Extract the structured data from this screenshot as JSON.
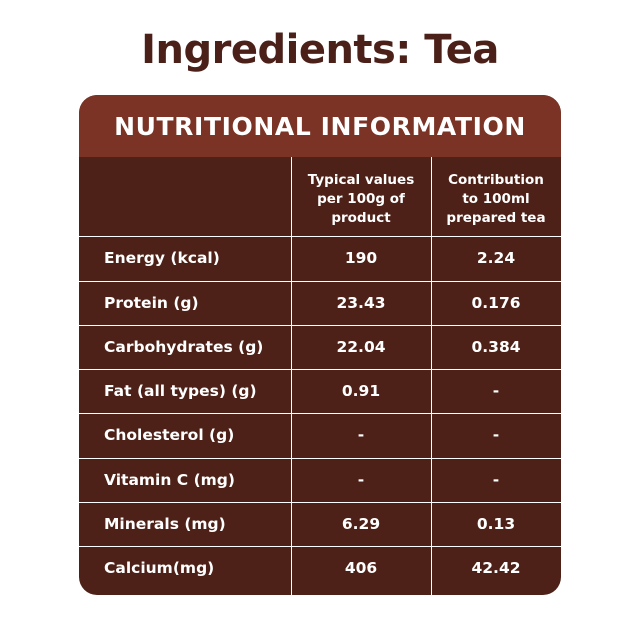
{
  "title": "Ingredients: Tea",
  "table": {
    "heading": "NUTRITIONAL INFORMATION",
    "columns": [
      "",
      "Typical values\nper 100g of\nproduct",
      "Contribution\nto 100ml\nprepared tea"
    ],
    "rows": [
      {
        "label": "Energy (kcal)",
        "per_100g": "190",
        "per_100ml": "2.24"
      },
      {
        "label": "Protein (g)",
        "per_100g": "23.43",
        "per_100ml": "0.176"
      },
      {
        "label": "Carbohydrates (g)",
        "per_100g": "22.04",
        "per_100ml": "0.384"
      },
      {
        "label": "Fat (all types) (g)",
        "per_100g": "0.91",
        "per_100ml": "-"
      },
      {
        "label": "Cholesterol (g)",
        "per_100g": "-",
        "per_100ml": "-"
      },
      {
        "label": "Vitamin C (mg)",
        "per_100g": "-",
        "per_100ml": "-"
      },
      {
        "label": "Minerals (mg)",
        "per_100g": "6.29",
        "per_100ml": "0.13"
      },
      {
        "label": "Calcium(mg)",
        "per_100g": "406",
        "per_100ml": "42.42"
      }
    ]
  },
  "colors": {
    "title_text": "#4a2019",
    "panel_background": "#4d2117",
    "banner_background": "#7a3324",
    "table_text": "#ffffff"
  }
}
